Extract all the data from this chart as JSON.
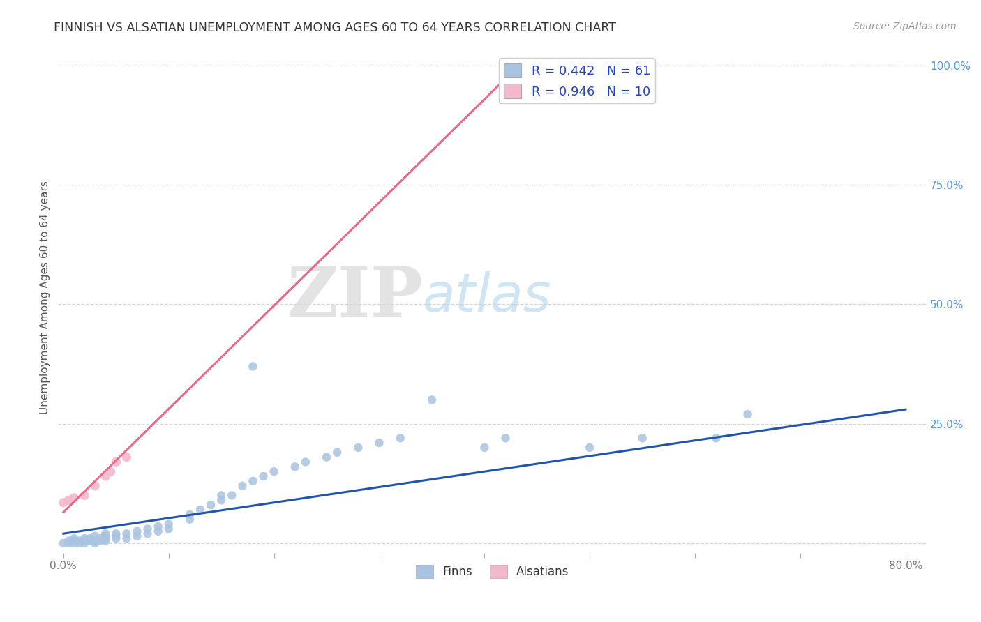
{
  "title": "FINNISH VS ALSATIAN UNEMPLOYMENT AMONG AGES 60 TO 64 YEARS CORRELATION CHART",
  "source": "Source: ZipAtlas.com",
  "ylabel": "Unemployment Among Ages 60 to 64 years",
  "xlim": [
    -0.005,
    0.82
  ],
  "ylim": [
    -0.02,
    1.05
  ],
  "xticks": [
    0.0,
    0.1,
    0.2,
    0.3,
    0.4,
    0.5,
    0.6,
    0.7,
    0.8
  ],
  "xticklabels": [
    "0.0%",
    "",
    "",
    "",
    "",
    "",
    "",
    "",
    "80.0%"
  ],
  "yticks_right": [
    0.0,
    0.25,
    0.5,
    0.75,
    1.0
  ],
  "yticklabels_right": [
    "",
    "25.0%",
    "50.0%",
    "75.0%",
    "100.0%"
  ],
  "finn_color": "#a8c4e0",
  "alsatian_color": "#f4b8cc",
  "finn_line_color": "#2255aa",
  "alsatian_line_color": "#ee6688",
  "legend_label_finn": "R = 0.442   N = 61",
  "legend_label_als": "R = 0.946   N = 10",
  "watermark_zip": "ZIP",
  "watermark_atlas": "atlas",
  "background_color": "#ffffff",
  "grid_color": "#cccccc",
  "finn_x": [
    0.0,
    0.005,
    0.005,
    0.01,
    0.01,
    0.01,
    0.015,
    0.015,
    0.02,
    0.02,
    0.02,
    0.025,
    0.025,
    0.03,
    0.03,
    0.03,
    0.035,
    0.035,
    0.04,
    0.04,
    0.04,
    0.04,
    0.05,
    0.05,
    0.05,
    0.06,
    0.06,
    0.07,
    0.07,
    0.08,
    0.08,
    0.09,
    0.09,
    0.1,
    0.1,
    0.12,
    0.12,
    0.13,
    0.14,
    0.15,
    0.15,
    0.16,
    0.17,
    0.18,
    0.19,
    0.2,
    0.22,
    0.23,
    0.25,
    0.26,
    0.28,
    0.3,
    0.32,
    0.35,
    0.4,
    0.42,
    0.5,
    0.55,
    0.62,
    0.65,
    0.18
  ],
  "finn_y": [
    0.0,
    0.0,
    0.005,
    0.0,
    0.005,
    0.01,
    0.0,
    0.005,
    0.0,
    0.005,
    0.01,
    0.005,
    0.01,
    0.0,
    0.005,
    0.015,
    0.005,
    0.01,
    0.005,
    0.01,
    0.015,
    0.02,
    0.01,
    0.015,
    0.02,
    0.01,
    0.02,
    0.015,
    0.025,
    0.02,
    0.03,
    0.025,
    0.035,
    0.03,
    0.04,
    0.05,
    0.06,
    0.07,
    0.08,
    0.09,
    0.1,
    0.1,
    0.12,
    0.13,
    0.14,
    0.15,
    0.16,
    0.17,
    0.18,
    0.19,
    0.2,
    0.21,
    0.22,
    0.3,
    0.2,
    0.22,
    0.2,
    0.22,
    0.22,
    0.27,
    0.37
  ],
  "alsatian_x": [
    0.0,
    0.005,
    0.01,
    0.02,
    0.03,
    0.04,
    0.045,
    0.05,
    0.06,
    0.43
  ],
  "alsatian_y": [
    0.085,
    0.09,
    0.095,
    0.1,
    0.12,
    0.14,
    0.15,
    0.17,
    0.18,
    1.0
  ],
  "finn_trend_x": [
    0.0,
    0.8
  ],
  "finn_trend_y": [
    0.02,
    0.28
  ],
  "als_trend_x": [
    0.0,
    0.435
  ],
  "als_trend_y": [
    0.065,
    1.005
  ]
}
